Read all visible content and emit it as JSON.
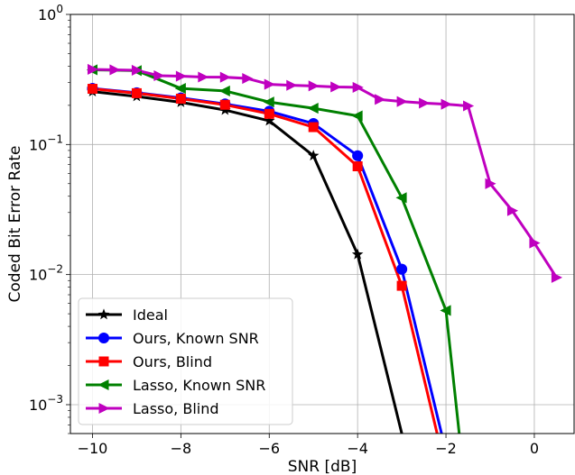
{
  "chart_data": {
    "type": "line",
    "xlabel": "SNR [dB]",
    "ylabel": "Coded Bit Error Rate",
    "xlim": [
      -10.5,
      0.9
    ],
    "ylim": [
      0.0006,
      1.0
    ],
    "y_scale": "log",
    "grid": true,
    "legend_position": "lower-left",
    "x_ticks": [
      -10,
      -8,
      -6,
      -4,
      -2,
      0
    ],
    "x_tick_labels": [
      "−10",
      "−8",
      "−6",
      "−4",
      "−2",
      "0"
    ],
    "y_ticks": [
      {
        "value": 1.0,
        "base": "10",
        "exp": "0"
      },
      {
        "value": 0.1,
        "base": "10",
        "exp": "−1"
      },
      {
        "value": 0.01,
        "base": "10",
        "exp": "−2"
      },
      {
        "value": 0.001,
        "base": "10",
        "exp": "−3"
      }
    ],
    "series": [
      {
        "name": "Ideal",
        "color": "#000000",
        "marker": "star",
        "x": [
          -10,
          -9,
          -8,
          -7,
          -6,
          -5,
          -4,
          -3
        ],
        "y": [
          0.255,
          0.234,
          0.211,
          0.184,
          0.152,
          0.082,
          0.0143,
          0.0006
        ]
      },
      {
        "name": "Ours, Known SNR",
        "color": "#0000ff",
        "marker": "circle",
        "x": [
          -10,
          -9,
          -8,
          -7,
          -6,
          -5,
          -4,
          -3,
          -2.1
        ],
        "y": [
          0.27,
          0.25,
          0.228,
          0.205,
          0.18,
          0.145,
          0.082,
          0.011,
          0.0006
        ]
      },
      {
        "name": "Ours, Blind",
        "color": "#ff0000",
        "marker": "square",
        "x": [
          -10,
          -9,
          -8,
          -7,
          -6,
          -5,
          -4,
          -3,
          -2.2
        ],
        "y": [
          0.268,
          0.248,
          0.225,
          0.202,
          0.172,
          0.136,
          0.068,
          0.0082,
          0.0006
        ]
      },
      {
        "name": "Lasso, Known SNR",
        "color": "#008000",
        "marker": "triangle-left",
        "x": [
          -10,
          -9,
          -8,
          -7,
          -6,
          -5,
          -4,
          -3,
          -2,
          -1.7
        ],
        "y": [
          0.375,
          0.37,
          0.27,
          0.258,
          0.212,
          0.19,
          0.166,
          0.039,
          0.0053,
          0.0006
        ]
      },
      {
        "name": "Lasso, Blind",
        "color": "#bf00bf",
        "marker": "triangle-right",
        "x": [
          -10,
          -9.5,
          -9,
          -8.5,
          -8,
          -7.5,
          -7,
          -6.5,
          -6,
          -5.5,
          -5,
          -4.5,
          -4,
          -3.5,
          -3,
          -2.5,
          -2,
          -1.5,
          -1,
          -0.5,
          0,
          0.5
        ],
        "y": [
          0.378,
          0.375,
          0.372,
          0.338,
          0.335,
          0.33,
          0.329,
          0.322,
          0.29,
          0.285,
          0.282,
          0.277,
          0.275,
          0.222,
          0.214,
          0.208,
          0.204,
          0.198,
          0.05,
          0.031,
          0.0175,
          0.0095
        ]
      }
    ]
  }
}
